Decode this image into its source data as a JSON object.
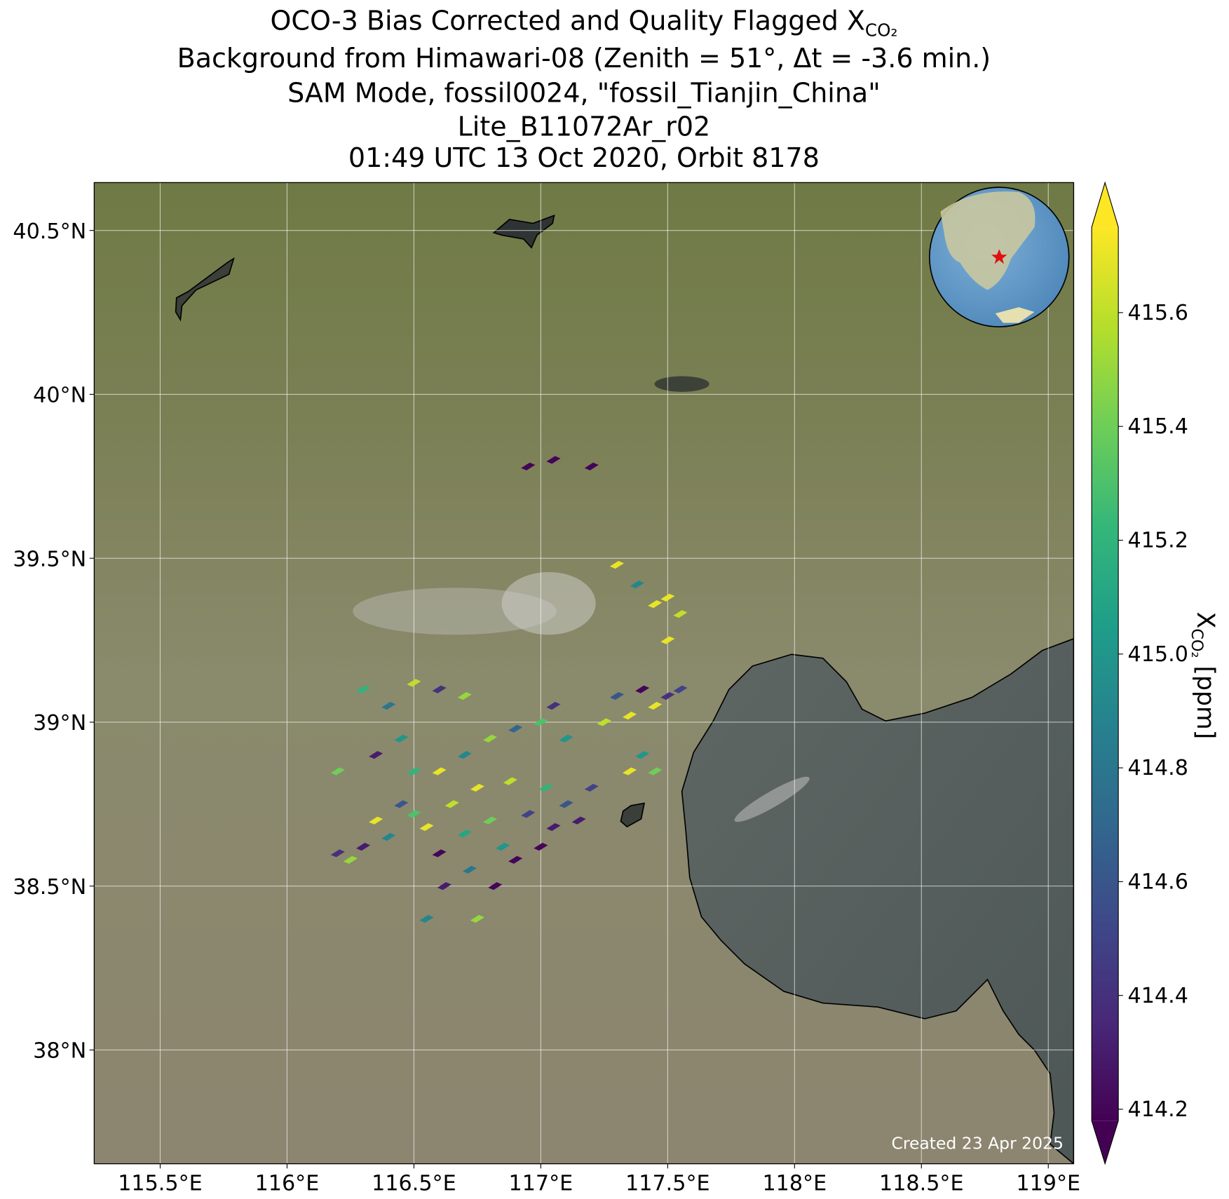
{
  "map": {
    "title": [
      "OCO-3 Bias Corrected and Quality Flagged X",
      "Background from Himawari-08 (Zenith = 51$^\\circ$, Δt = -3.6 min.)",
      "SAM Mode, fossil0024, \"fossil_Tianjin_China\"",
      "Lite_B11072Ar_r02",
      "01:49 UTC 13 Oct 2020, Orbit 8178"
    ],
    "title_sub": "CO₂",
    "xlim": [
      115.24,
      119.1
    ],
    "ylim": [
      37.653,
      40.646
    ],
    "xticks": [
      {
        "value": 115.5,
        "label": "115.5°E"
      },
      {
        "value": 116,
        "label": "116°E"
      },
      {
        "value": 116.5,
        "label": "116.5°E"
      },
      {
        "value": 117,
        "label": "117°E"
      },
      {
        "value": 117.5,
        "label": "117.5°E"
      },
      {
        "value": 118,
        "label": "118°E"
      },
      {
        "value": 118.5,
        "label": "118.5°E"
      },
      {
        "value": 119,
        "label": "119°E"
      }
    ],
    "yticks": [
      {
        "value": 38,
        "label": "38°N"
      },
      {
        "value": 38.5,
        "label": "38.5°N"
      },
      {
        "value": 39,
        "label": "39°N"
      },
      {
        "value": 39.5,
        "label": "39.5°N"
      },
      {
        "value": 40,
        "label": "40°N"
      },
      {
        "value": 40.5,
        "label": "40.5°N"
      }
    ],
    "grid": true,
    "colorbar": {
      "label": "X",
      "label_sub": "CO₂",
      "label_suffix": " [ppm]",
      "lim": [
        414.18,
        415.75
      ],
      "ticks": [
        414.2,
        414.4,
        414.6,
        414.8,
        {
          "value": 415,
          "label": "415.0"
        },
        415.2,
        415.4,
        415.6
      ]
    },
    "credit": "Created 23 Apr 2025",
    "footprints": {
      "lon": [
        116.2,
        116.25,
        116.3,
        116.35,
        116.4,
        116.45,
        116.5,
        116.55,
        116.6,
        116.62,
        116.65,
        116.7,
        116.72,
        116.75,
        116.8,
        116.82,
        116.85,
        116.88,
        116.9,
        116.95,
        117.0,
        117.02,
        117.05,
        117.1,
        117.15,
        117.2,
        116.6,
        116.5,
        116.7,
        116.8,
        116.9,
        117.0,
        117.05,
        117.1,
        117.25,
        117.3,
        117.35,
        117.4,
        117.45,
        117.5,
        117.55,
        117.4,
        117.35,
        117.45,
        116.3,
        116.4,
        116.5,
        116.6,
        116.7,
        116.2,
        116.35,
        116.45,
        116.55,
        116.75,
        117.5,
        117.45,
        117.55,
        117.38,
        117.3,
        117.5,
        116.95,
        117.05,
        117.2
      ],
      "lat": [
        38.6,
        38.58,
        38.62,
        38.7,
        38.65,
        38.75,
        38.72,
        38.68,
        38.6,
        38.5,
        38.75,
        38.66,
        38.55,
        38.8,
        38.7,
        38.5,
        38.62,
        38.82,
        38.58,
        38.72,
        38.62,
        38.8,
        38.68,
        38.75,
        38.7,
        38.8,
        38.85,
        38.85,
        38.9,
        38.95,
        38.98,
        39.0,
        39.05,
        38.95,
        39.0,
        39.08,
        39.02,
        39.1,
        39.05,
        39.08,
        39.1,
        38.9,
        38.85,
        38.85,
        39.1,
        39.05,
        39.12,
        39.1,
        39.08,
        38.85,
        38.9,
        38.95,
        38.4,
        38.4,
        39.38,
        39.36,
        39.33,
        39.42,
        39.48,
        39.25,
        39.78,
        39.8,
        39.78
      ],
      "xco2": [
        414.4,
        415.5,
        414.3,
        415.7,
        414.9,
        414.6,
        415.3,
        415.7,
        414.2,
        414.3,
        415.6,
        415.1,
        414.8,
        415.7,
        415.4,
        414.2,
        415.0,
        415.6,
        414.2,
        414.5,
        414.2,
        415.2,
        414.3,
        414.6,
        414.3,
        414.5,
        415.7,
        415.2,
        414.9,
        415.5,
        414.7,
        415.3,
        414.4,
        415.0,
        415.6,
        414.6,
        415.7,
        414.2,
        415.7,
        414.4,
        414.5,
        415.0,
        415.7,
        415.4,
        415.2,
        414.8,
        415.6,
        414.4,
        415.5,
        415.4,
        414.3,
        415.0,
        414.9,
        415.5,
        415.7,
        415.7,
        415.6,
        414.9,
        415.7,
        415.7,
        414.2,
        414.2,
        414.2
      ]
    }
  }
}
